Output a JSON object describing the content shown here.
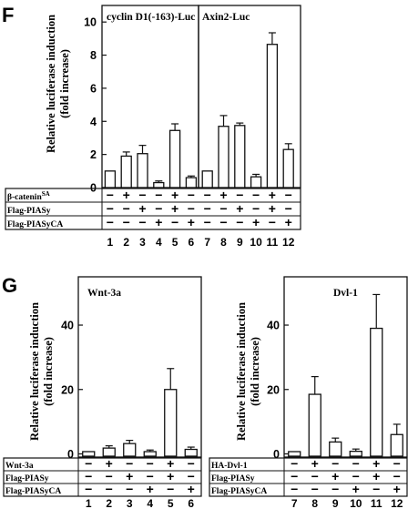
{
  "panel_F": {
    "letter": "F",
    "ylabel_1": "Relative luciferase induction",
    "ylabel_2": "(fold increase)",
    "yticks": [
      "0",
      "2",
      "4",
      "6",
      "8",
      "10"
    ],
    "treatment_rows": [
      {
        "label_main": "β-catenin",
        "label_sup": "SA",
        "signs": [
          "−",
          "+",
          "−",
          "−",
          "+",
          "−",
          "−",
          "+",
          "−",
          "−",
          "+",
          "−"
        ]
      },
      {
        "label_main": "Flag-PIASy",
        "label_sup": "",
        "signs": [
          "−",
          "−",
          "+",
          "−",
          "+",
          "−",
          "−",
          "−",
          "+",
          "−",
          "+",
          "−"
        ]
      },
      {
        "label_main": "Flag-PIASyCA",
        "label_sup": "",
        "signs": [
          "−",
          "−",
          "−",
          "+",
          "−",
          "+",
          "−",
          "−",
          "−",
          "+",
          "−",
          "+"
        ]
      }
    ],
    "lanes": [
      "1",
      "2",
      "3",
      "4",
      "5",
      "6",
      "7",
      "8",
      "9",
      "10",
      "11",
      "12"
    ]
  },
  "panel_G": {
    "letter": "G",
    "ylabel_1": "Relative luciferase induction",
    "ylabel_2": "(fold increase)",
    "yticks": [
      "0",
      "20",
      "40"
    ],
    "left_rows": [
      {
        "label": "Wnt-3a",
        "signs": [
          "−",
          "+",
          "−",
          "−",
          "+",
          "−"
        ]
      },
      {
        "label": "Flag-PIASy",
        "signs": [
          "−",
          "−",
          "+",
          "−",
          "+",
          "−"
        ]
      },
      {
        "label": "Flag-PIASyCA",
        "signs": [
          "−",
          "−",
          "−",
          "+",
          "−",
          "+"
        ]
      }
    ],
    "right_rows": [
      {
        "label": "HA-Dvl-1",
        "signs": [
          "−",
          "+",
          "−",
          "−",
          "+",
          "−"
        ]
      },
      {
        "label": "Flag-PIASy",
        "signs": [
          "−",
          "−",
          "+",
          "−",
          "+",
          "−"
        ]
      },
      {
        "label": "Flag-PIASyCA",
        "signs": [
          "−",
          "−",
          "−",
          "+",
          "−",
          "+"
        ]
      }
    ],
    "left_lanes": [
      "1",
      "2",
      "3",
      "4",
      "5",
      "6"
    ],
    "right_lanes": [
      "7",
      "8",
      "9",
      "10",
      "11",
      "12"
    ]
  },
  "chart_data": [
    {
      "type": "bar",
      "panel": "F",
      "title": "cyclin D1(-163)-Luc",
      "categories": [
        "1",
        "2",
        "3",
        "4",
        "5",
        "6"
      ],
      "values": [
        1.0,
        1.9,
        2.05,
        0.3,
        3.45,
        0.6
      ],
      "errors": [
        0,
        0.25,
        0.5,
        0.1,
        0.4,
        0.1
      ],
      "ylim": [
        0,
        11
      ]
    },
    {
      "type": "bar",
      "panel": "F",
      "title": "Axin2-Luc",
      "categories": [
        "7",
        "8",
        "9",
        "10",
        "11",
        "12"
      ],
      "values": [
        1.0,
        3.7,
        3.75,
        0.65,
        8.65,
        2.3
      ],
      "errors": [
        0,
        0.65,
        0.15,
        0.15,
        0.7,
        0.35
      ],
      "ylim": [
        0,
        11
      ]
    },
    {
      "type": "bar",
      "panel": "G",
      "title": "Wnt-3a",
      "categories": [
        "1",
        "2",
        "3",
        "4",
        "5",
        "6"
      ],
      "values": [
        0.7,
        1.8,
        3.2,
        0.7,
        20.0,
        1.4
      ],
      "errors": [
        0,
        0.7,
        1.0,
        0.5,
        6.5,
        0.7
      ],
      "ylim": [
        -1,
        55
      ]
    },
    {
      "type": "bar",
      "panel": "G",
      "title": "Dvl-1",
      "categories": [
        "7",
        "8",
        "9",
        "10",
        "11",
        "12"
      ],
      "values": [
        0.7,
        18.5,
        3.7,
        0.8,
        39.0,
        6.0
      ],
      "errors": [
        0,
        5.5,
        1.2,
        0.7,
        10.5,
        3.2
      ],
      "ylim": [
        -1,
        55
      ]
    }
  ]
}
